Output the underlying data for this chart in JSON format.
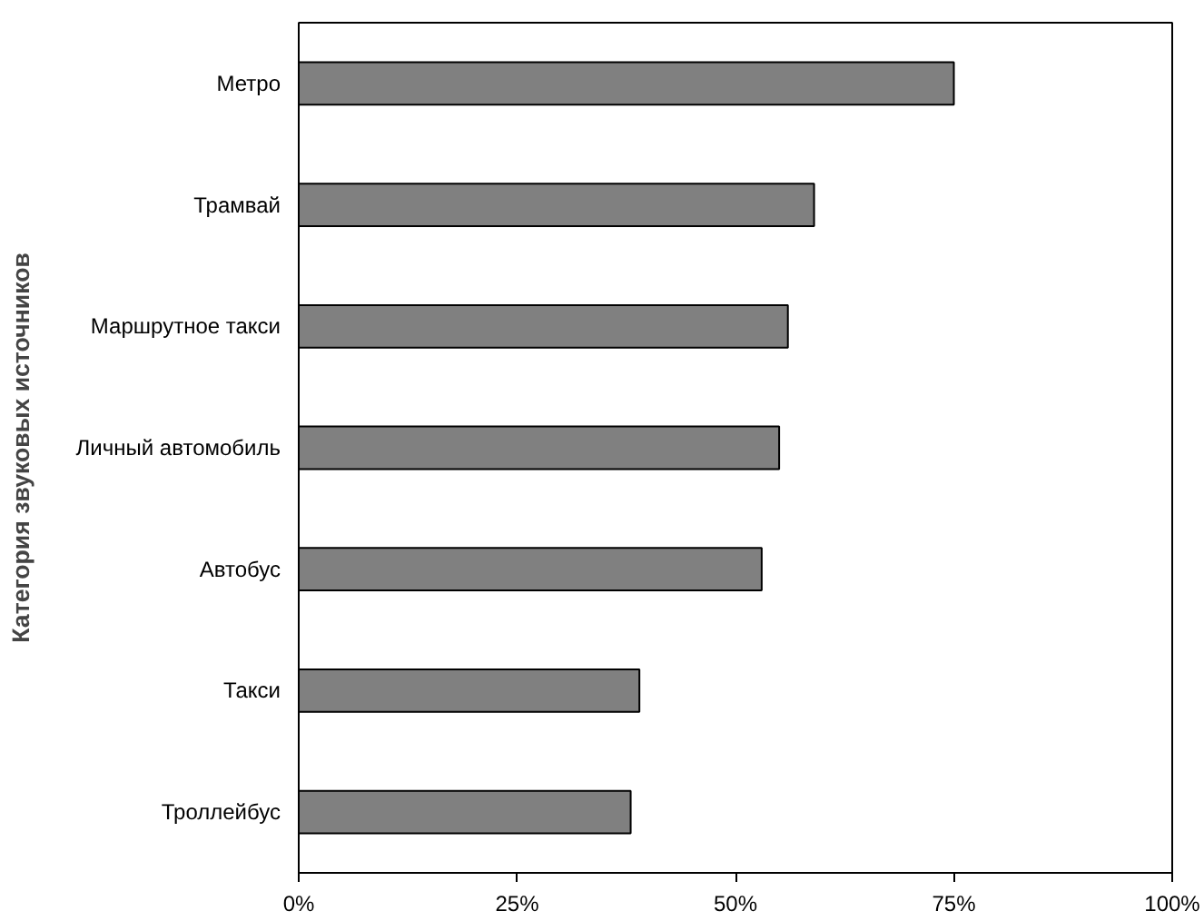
{
  "chart_data": {
    "type": "bar",
    "orientation": "horizontal",
    "ylabel": "Категория звуковых источников",
    "categories": [
      "Метро",
      "Трамвай",
      "Маршрутное такси",
      "Личный автомобиль",
      "Автобус",
      "Такси",
      "Троллейбус"
    ],
    "values": [
      75,
      59,
      56,
      55,
      53,
      39,
      38
    ],
    "color": "#808080",
    "xlim": [
      0,
      100
    ],
    "xticks": [
      {
        "value": 0,
        "label": "0%"
      },
      {
        "value": 25,
        "label": "25%"
      },
      {
        "value": 50,
        "label": "50%"
      },
      {
        "value": 75,
        "label": "75%"
      },
      {
        "value": 100,
        "label": "100%"
      }
    ],
    "grid": false
  }
}
